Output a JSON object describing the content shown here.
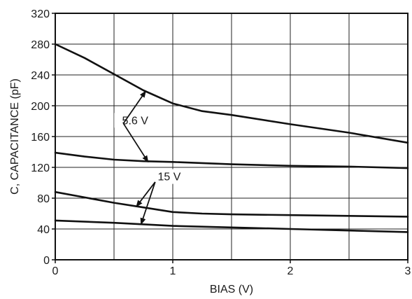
{
  "chart_data": {
    "type": "line",
    "title": "",
    "xlabel": "BIAS (V)",
    "ylabel": "C, CAPACITANCE (pF)",
    "xlim": [
      0,
      3
    ],
    "ylim": [
      0,
      320
    ],
    "x_ticks": [
      0,
      1,
      2,
      3
    ],
    "x_tick_labels": [
      "0",
      "1",
      "2",
      "3"
    ],
    "y_ticks": [
      0,
      40,
      80,
      120,
      160,
      200,
      240,
      280,
      320
    ],
    "y_tick_labels": [
      "0",
      "40",
      "80",
      "120",
      "160",
      "200",
      "240",
      "280",
      "320"
    ],
    "x_grid_step": 0.5,
    "y_grid_step": 40,
    "grid": true,
    "line_color": "#111111",
    "series": [
      {
        "x": [
          0,
          0.25,
          0.5,
          0.75,
          1.0,
          1.25,
          1.5,
          2.0,
          2.5,
          3.0
        ],
        "y": [
          280,
          262,
          241,
          220,
          203,
          193,
          188,
          176,
          165,
          152
        ]
      },
      {
        "x": [
          0,
          0.25,
          0.5,
          0.75,
          1.0,
          1.5,
          2.0,
          2.5,
          3.0
        ],
        "y": [
          139,
          134,
          130,
          128,
          127,
          124,
          122,
          121,
          119
        ]
      },
      {
        "x": [
          0,
          0.25,
          0.5,
          0.75,
          1.0,
          1.25,
          1.5,
          2.0,
          2.5,
          3.0
        ],
        "y": [
          88,
          81,
          74,
          68,
          62,
          60,
          59,
          58,
          57,
          56
        ]
      },
      {
        "x": [
          0,
          0.5,
          1.0,
          1.5,
          2.0,
          2.5,
          3.0
        ],
        "y": [
          51,
          48,
          44,
          42,
          40,
          38,
          36
        ]
      }
    ],
    "annotations": [
      {
        "text": "5.6 V",
        "label_at": [
          0.68,
          177
        ],
        "arrows": [
          {
            "from": [
              0.58,
              177
            ],
            "to": [
              0.77,
              219
            ]
          },
          {
            "from": [
              0.58,
              177
            ],
            "to": [
              0.79,
              127
            ]
          }
        ]
      },
      {
        "text": "15 V",
        "label_at": [
          0.97,
          104
        ],
        "arrows": [
          {
            "from": [
              0.85,
              101
            ],
            "to": [
              0.69,
              69
            ]
          },
          {
            "from": [
              0.85,
              101
            ],
            "to": [
              0.73,
              46
            ]
          }
        ]
      }
    ]
  }
}
